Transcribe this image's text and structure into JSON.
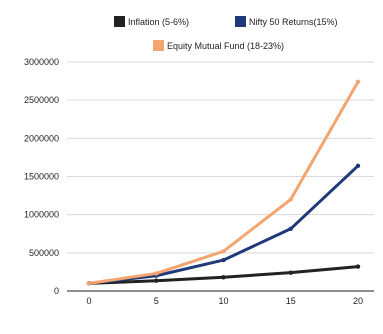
{
  "chart_data": {
    "type": "line",
    "title": "",
    "xlabel": "",
    "ylabel": "",
    "x": [
      0,
      5,
      10,
      15,
      20
    ],
    "x_tick_labels": [
      "0",
      "5",
      "10",
      "15",
      "20"
    ],
    "y_tick_labels": [
      "0",
      "500000",
      "1000000",
      "1500000",
      "2000000",
      "2500000",
      "3000000"
    ],
    "ylim": [
      0,
      3000000
    ],
    "grid": "horizontal",
    "legend_position": "top",
    "series": [
      {
        "name": "Inflation (5-6%)",
        "color": "#222222",
        "values": [
          100000,
          135000,
          180000,
          240000,
          320000
        ]
      },
      {
        "name": "Nifty 50 Returns(15%)",
        "color": "#1f3a7a",
        "values": [
          100000,
          200000,
          405000,
          815000,
          1640000
        ]
      },
      {
        "name": "Equity Mutual Fund (18-23%)",
        "color": "#f4a46f",
        "values": [
          100000,
          230000,
          520000,
          1200000,
          2740000
        ]
      }
    ]
  }
}
